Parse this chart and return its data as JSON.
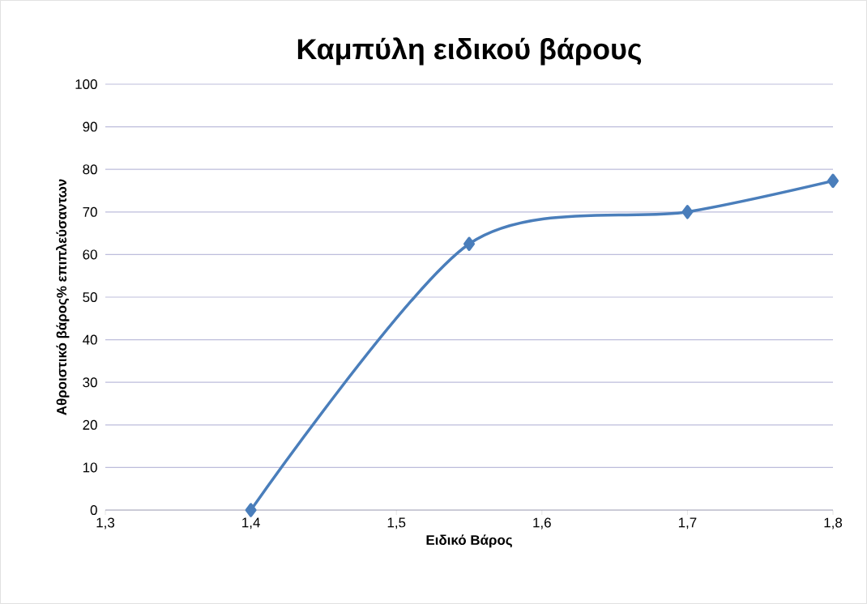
{
  "chart_data": {
    "type": "line",
    "title": "Καμπύλη ειδικού βάρους",
    "xlabel": "Ειδικό Βάρος",
    "ylabel": "Αθροιστικό βάρος% επιπλεύσαντων",
    "x": [
      1.4,
      1.55,
      1.7,
      1.8
    ],
    "series": [
      {
        "color": "#4a7ebb",
        "values": [
          0,
          62.5,
          70,
          77.3
        ]
      }
    ],
    "xlim": [
      1.3,
      1.8
    ],
    "ylim": [
      0,
      100
    ],
    "xticks": [
      {
        "value": 1.3,
        "label": "1,3"
      },
      {
        "value": 1.4,
        "label": "1,4"
      },
      {
        "value": 1.5,
        "label": "1,5"
      },
      {
        "value": 1.6,
        "label": "1,6"
      },
      {
        "value": 1.7,
        "label": "1,7"
      },
      {
        "value": 1.8,
        "label": "1,8"
      }
    ],
    "yticks": [
      0,
      10,
      20,
      30,
      40,
      50,
      60,
      70,
      80,
      90,
      100
    ],
    "grid": "y",
    "marker": "diamond",
    "line_style": "solid"
  }
}
